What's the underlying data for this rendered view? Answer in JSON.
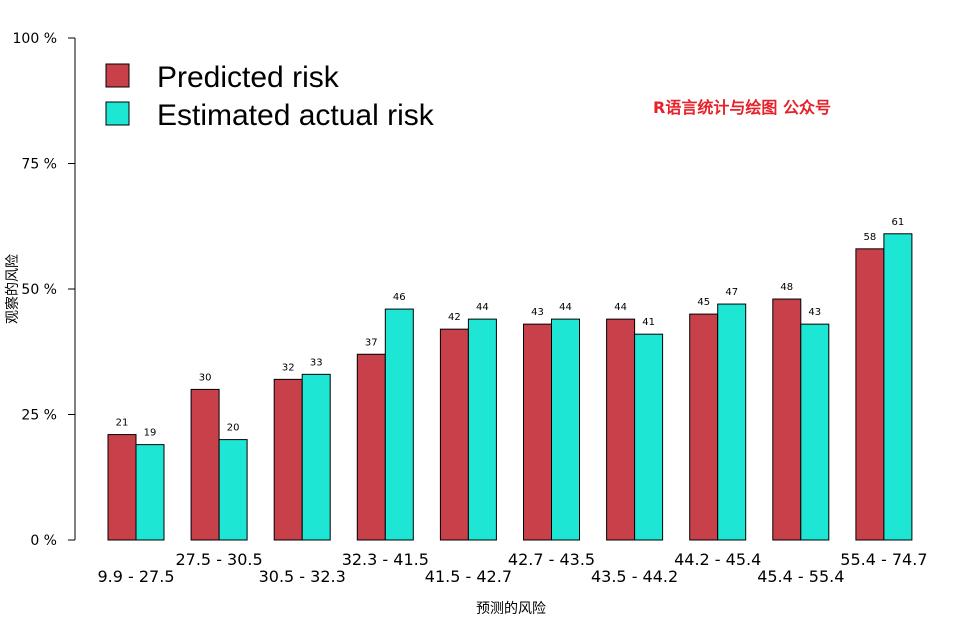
{
  "chart_data": {
    "type": "bar",
    "xlabel": "预测的风险",
    "ylabel": "观察的风险",
    "ylim": [
      0,
      100
    ],
    "yticks": [
      0,
      25,
      50,
      75,
      100
    ],
    "ytick_labels": [
      "0 %",
      "25 %",
      "50 %",
      "75 %",
      "100 %"
    ],
    "categories": [
      "9.9 - 27.5",
      "27.5 - 30.5",
      "30.5 - 32.3",
      "32.3 - 41.5",
      "41.5 - 42.7",
      "42.7 - 43.5",
      "43.5 - 44.2",
      "44.2 - 45.4",
      "45.4 - 55.4",
      "55.4 - 74.7"
    ],
    "series": [
      {
        "name": "Predicted risk",
        "color": "#c8404a",
        "values": [
          21,
          30,
          32,
          37,
          42,
          43,
          44,
          45,
          48,
          58
        ]
      },
      {
        "name": "Estimated actual risk",
        "color": "#1de6d4",
        "values": [
          19,
          20,
          33,
          46,
          44,
          44,
          41,
          47,
          43,
          61
        ]
      }
    ],
    "legend_position": "top-left",
    "grid": false
  },
  "watermark": {
    "text": "R语言统计与绘图  公众号",
    "color": "#e8202a"
  }
}
